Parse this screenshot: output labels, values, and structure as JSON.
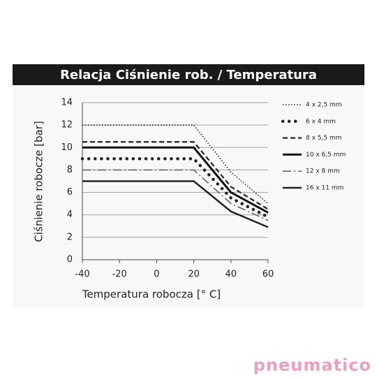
{
  "chart_data": {
    "type": "line",
    "title": "Relacja Ciśnienie rob. / Temperatura",
    "y_label": "Ciśnienie robocze [bar]",
    "x_label": "Temperatura robocza [° C]",
    "x": [
      -40,
      20,
      40,
      60
    ],
    "xlim": [
      -40,
      60
    ],
    "xticks": [
      -40,
      -20,
      0,
      20,
      40,
      60
    ],
    "ylim": [
      0,
      14
    ],
    "yticks": [
      0,
      2,
      4,
      6,
      8,
      10,
      12,
      14
    ],
    "grid": true,
    "legend": "right",
    "series": [
      {
        "name": "4 x 2,5 mm",
        "color": "#222222",
        "style": "dotted",
        "values": [
          12,
          12,
          7.8,
          5.0
        ]
      },
      {
        "name": "6 x 4 mm",
        "color": "#222222",
        "style": "big-dots",
        "values": [
          9,
          9,
          5.5,
          3.8
        ]
      },
      {
        "name": "8 x 5,5 mm",
        "color": "#222222",
        "style": "dashed",
        "values": [
          10.5,
          10.5,
          6.5,
          4.5
        ]
      },
      {
        "name": "10 x 6,5 mm",
        "color": "#111111",
        "style": "thick",
        "values": [
          10,
          10,
          6,
          4.2
        ]
      },
      {
        "name": "12 x 8 mm",
        "color": "#666666",
        "style": "dash-dot",
        "values": [
          8,
          8,
          5,
          3.5
        ]
      },
      {
        "name": "16 x 11 mm",
        "color": "#222222",
        "style": "solid",
        "values": [
          7,
          7,
          4.3,
          2.9
        ]
      }
    ]
  },
  "logo": "pneumatico"
}
